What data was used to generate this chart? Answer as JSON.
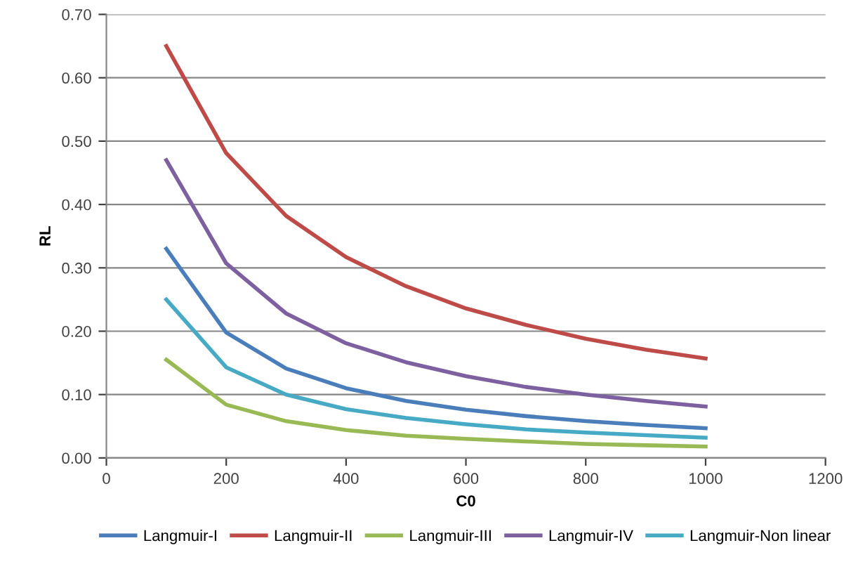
{
  "chart_data": {
    "type": "line",
    "xlabel": "C0",
    "ylabel": "RL",
    "x": [
      100,
      200,
      300,
      400,
      500,
      600,
      700,
      800,
      900,
      1000
    ],
    "series": [
      {
        "name": "Langmuir-I",
        "color": "#4a7ebb",
        "values": [
          0.33,
          0.198,
          0.141,
          0.11,
          0.09,
          0.076,
          0.066,
          0.058,
          0.052,
          0.047
        ]
      },
      {
        "name": "Langmuir-II",
        "color": "#be4b48",
        "values": [
          0.65,
          0.481,
          0.382,
          0.317,
          0.271,
          0.236,
          0.21,
          0.188,
          0.171,
          0.157
        ]
      },
      {
        "name": "Langmuir-III",
        "color": "#98b954",
        "values": [
          0.155,
          0.084,
          0.058,
          0.044,
          0.035,
          0.03,
          0.026,
          0.022,
          0.02,
          0.018
        ]
      },
      {
        "name": "Langmuir-IV",
        "color": "#7d60a0",
        "values": [
          0.47,
          0.307,
          0.228,
          0.181,
          0.151,
          0.129,
          0.112,
          0.1,
          0.09,
          0.081
        ]
      },
      {
        "name": "Langmuir-Non linear",
        "color": "#46aac5",
        "values": [
          0.25,
          0.143,
          0.1,
          0.077,
          0.063,
          0.053,
          0.045,
          0.04,
          0.036,
          0.032
        ]
      }
    ],
    "xlim": [
      0,
      1200
    ],
    "xticks": [
      0,
      200,
      400,
      600,
      800,
      1000,
      1200
    ],
    "ylim": [
      0,
      0.7
    ],
    "yticks": [
      {
        "value": 0,
        "label": "0.00"
      },
      {
        "value": 0.1,
        "label": "0.10"
      },
      {
        "value": 0.2,
        "label": "0.20"
      },
      {
        "value": 0.3,
        "label": "0.30"
      },
      {
        "value": 0.4,
        "label": "0.40"
      },
      {
        "value": 0.5,
        "label": "0.50"
      },
      {
        "value": 0.6,
        "label": "0.60"
      },
      {
        "value": 0.7,
        "label": "0.70"
      }
    ],
    "grid": "y",
    "legend": "bottom",
    "marker": "none",
    "line_style": "solid"
  }
}
